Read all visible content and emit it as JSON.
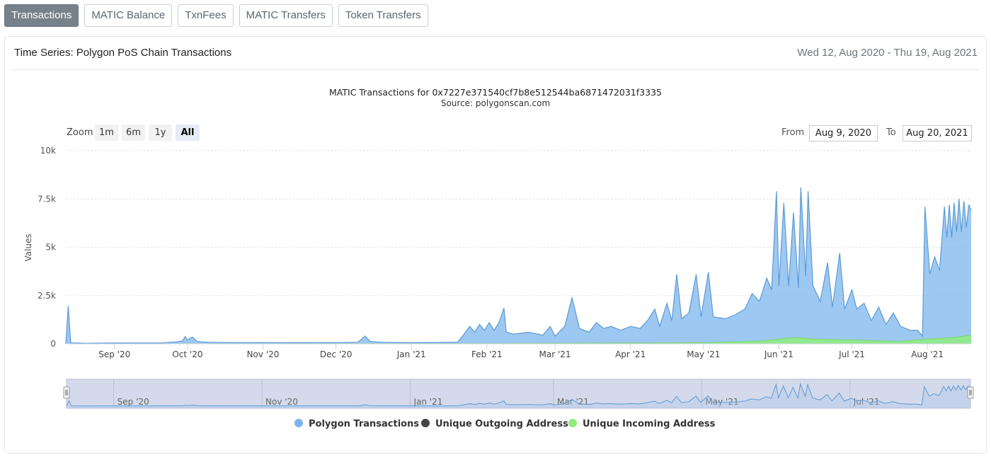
{
  "tabs": [
    {
      "label": "Transactions",
      "active": true
    },
    {
      "label": "MATIC Balance",
      "active": false
    },
    {
      "label": "TxnFees",
      "active": false
    },
    {
      "label": "MATIC Transfers",
      "active": false
    },
    {
      "label": "Token Transfers",
      "active": false
    }
  ],
  "card": {
    "title": "Time Series: Polygon PoS Chain Transactions",
    "date_range": "Wed 12, Aug 2020 - Thu 19, Aug 2021"
  },
  "zoom": {
    "label": "Zoom",
    "buttons": [
      {
        "label": "1m",
        "selected": false
      },
      {
        "label": "6m",
        "selected": false
      },
      {
        "label": "1y",
        "selected": false
      },
      {
        "label": "All",
        "selected": true
      }
    ]
  },
  "range": {
    "from_label": "From",
    "from": "Aug 9, 2020",
    "to_label": "To",
    "to": "Aug 20, 2021"
  },
  "colors": {
    "transactions": "#7cb5ec",
    "outgoing": "#434348",
    "incoming": "#90ed7d"
  },
  "chart_data": {
    "type": "area",
    "title": "MATIC Transactions for 0x7227e371540cf7b8e512544ba6871472031f3335",
    "subtitle": "Source: polygonscan.com",
    "ylabel": "Values",
    "xlabel": "",
    "ylim": [
      0,
      10000
    ],
    "y_ticks": [
      0,
      2500,
      5000,
      7500,
      10000
    ],
    "y_tick_labels": [
      "0",
      "2.5k",
      "5k",
      "7.5k",
      "10k"
    ],
    "xlim": [
      "2020-08-12",
      "2021-08-19"
    ],
    "x_ticks": [
      {
        "date": "2020-09-01",
        "label": "Sep '20"
      },
      {
        "date": "2020-10-01",
        "label": "Oct '20"
      },
      {
        "date": "2020-11-01",
        "label": "Nov '20"
      },
      {
        "date": "2020-12-01",
        "label": "Dec '20"
      },
      {
        "date": "2021-01-01",
        "label": "Jan '21"
      },
      {
        "date": "2021-02-01",
        "label": "Feb '21"
      },
      {
        "date": "2021-03-01",
        "label": "Mar '21"
      },
      {
        "date": "2021-04-01",
        "label": "Apr '21"
      },
      {
        "date": "2021-05-01",
        "label": "May '21"
      },
      {
        "date": "2021-06-01",
        "label": "Jun '21"
      },
      {
        "date": "2021-07-01",
        "label": "Jul '21"
      },
      {
        "date": "2021-08-01",
        "label": "Aug '21"
      }
    ],
    "navigator_ticks": [
      {
        "date": "2020-09-01",
        "label": "Sep '20"
      },
      {
        "date": "2020-11-01",
        "label": "Nov '20"
      },
      {
        "date": "2021-01-01",
        "label": "Jan '21"
      },
      {
        "date": "2021-03-01",
        "label": "Mar '21"
      },
      {
        "date": "2021-05-01",
        "label": "May '21"
      },
      {
        "date": "2021-07-01",
        "label": "Jul '21"
      }
    ],
    "legend_position": "bottom",
    "grid": true,
    "series": [
      {
        "name": "Polygon Transactions",
        "color": "#7cb5ec",
        "points": [
          [
            "2020-08-12",
            0
          ],
          [
            "2020-08-13",
            1950
          ],
          [
            "2020-08-14",
            50
          ],
          [
            "2020-08-20",
            30
          ],
          [
            "2020-09-01",
            40
          ],
          [
            "2020-09-20",
            40
          ],
          [
            "2020-09-26",
            100
          ],
          [
            "2020-09-29",
            150
          ],
          [
            "2020-09-30",
            380
          ],
          [
            "2020-10-01",
            200
          ],
          [
            "2020-10-03",
            350
          ],
          [
            "2020-10-05",
            120
          ],
          [
            "2020-10-10",
            80
          ],
          [
            "2020-10-20",
            60
          ],
          [
            "2020-11-01",
            60
          ],
          [
            "2020-11-15",
            60
          ],
          [
            "2020-12-01",
            60
          ],
          [
            "2020-12-10",
            80
          ],
          [
            "2020-12-13",
            400
          ],
          [
            "2020-12-15",
            120
          ],
          [
            "2020-12-20",
            80
          ],
          [
            "2021-01-01",
            60
          ],
          [
            "2021-01-20",
            80
          ],
          [
            "2021-01-22",
            400
          ],
          [
            "2021-01-25",
            900
          ],
          [
            "2021-01-27",
            600
          ],
          [
            "2021-01-29",
            1000
          ],
          [
            "2021-01-31",
            700
          ],
          [
            "2021-02-02",
            1100
          ],
          [
            "2021-02-04",
            700
          ],
          [
            "2021-02-06",
            1100
          ],
          [
            "2021-02-08",
            1850
          ],
          [
            "2021-02-09",
            600
          ],
          [
            "2021-02-12",
            500
          ],
          [
            "2021-02-18",
            600
          ],
          [
            "2021-02-24",
            450
          ],
          [
            "2021-02-27",
            900
          ],
          [
            "2021-03-01",
            400
          ],
          [
            "2021-03-05",
            900
          ],
          [
            "2021-03-08",
            2400
          ],
          [
            "2021-03-11",
            800
          ],
          [
            "2021-03-15",
            600
          ],
          [
            "2021-03-18",
            1100
          ],
          [
            "2021-03-21",
            800
          ],
          [
            "2021-03-24",
            900
          ],
          [
            "2021-03-28",
            700
          ],
          [
            "2021-04-01",
            900
          ],
          [
            "2021-04-05",
            800
          ],
          [
            "2021-04-08",
            1200
          ],
          [
            "2021-04-11",
            1800
          ],
          [
            "2021-04-13",
            900
          ],
          [
            "2021-04-16",
            2100
          ],
          [
            "2021-04-18",
            1200
          ],
          [
            "2021-04-20",
            3600
          ],
          [
            "2021-04-22",
            1300
          ],
          [
            "2021-04-25",
            1600
          ],
          [
            "2021-04-28",
            3600
          ],
          [
            "2021-04-30",
            1400
          ],
          [
            "2021-05-03",
            3700
          ],
          [
            "2021-05-05",
            1400
          ],
          [
            "2021-05-10",
            1300
          ],
          [
            "2021-05-14",
            1500
          ],
          [
            "2021-05-18",
            1800
          ],
          [
            "2021-05-21",
            2600
          ],
          [
            "2021-05-24",
            2200
          ],
          [
            "2021-05-27",
            3400
          ],
          [
            "2021-05-29",
            2800
          ],
          [
            "2021-05-31",
            7900
          ],
          [
            "2021-06-01",
            3000
          ],
          [
            "2021-06-03",
            7300
          ],
          [
            "2021-06-05",
            3000
          ],
          [
            "2021-06-07",
            6800
          ],
          [
            "2021-06-09",
            2900
          ],
          [
            "2021-06-10",
            8100
          ],
          [
            "2021-06-12",
            3500
          ],
          [
            "2021-06-13",
            7900
          ],
          [
            "2021-06-15",
            3000
          ],
          [
            "2021-06-18",
            2200
          ],
          [
            "2021-06-21",
            4200
          ],
          [
            "2021-06-23",
            1900
          ],
          [
            "2021-06-26",
            4700
          ],
          [
            "2021-06-28",
            1800
          ],
          [
            "2021-07-01",
            2800
          ],
          [
            "2021-07-03",
            1800
          ],
          [
            "2021-07-06",
            2100
          ],
          [
            "2021-07-09",
            1200
          ],
          [
            "2021-07-12",
            1900
          ],
          [
            "2021-07-15",
            1000
          ],
          [
            "2021-07-18",
            1600
          ],
          [
            "2021-07-21",
            900
          ],
          [
            "2021-07-25",
            700
          ],
          [
            "2021-07-28",
            700
          ],
          [
            "2021-07-30",
            400
          ],
          [
            "2021-07-31",
            7100
          ],
          [
            "2021-08-02",
            3600
          ],
          [
            "2021-08-04",
            4500
          ],
          [
            "2021-08-06",
            3800
          ],
          [
            "2021-08-08",
            7100
          ],
          [
            "2021-08-09",
            5500
          ],
          [
            "2021-08-10",
            7200
          ],
          [
            "2021-08-11",
            5500
          ],
          [
            "2021-08-12",
            7300
          ],
          [
            "2021-08-13",
            5800
          ],
          [
            "2021-08-14",
            7500
          ],
          [
            "2021-08-15",
            5800
          ],
          [
            "2021-08-16",
            7400
          ],
          [
            "2021-08-17",
            6000
          ],
          [
            "2021-08-18",
            7200
          ],
          [
            "2021-08-19",
            6900
          ]
        ]
      },
      {
        "name": "Unique Outgoing Address",
        "color": "#434348",
        "points": [
          [
            "2020-08-12",
            0
          ],
          [
            "2021-08-19",
            0
          ]
        ]
      },
      {
        "name": "Unique Incoming Address",
        "color": "#90ed7d",
        "points": [
          [
            "2020-08-12",
            0
          ],
          [
            "2021-01-20",
            10
          ],
          [
            "2021-03-01",
            30
          ],
          [
            "2021-04-01",
            40
          ],
          [
            "2021-05-01",
            60
          ],
          [
            "2021-05-25",
            150
          ],
          [
            "2021-06-08",
            330
          ],
          [
            "2021-06-15",
            250
          ],
          [
            "2021-07-01",
            200
          ],
          [
            "2021-07-20",
            120
          ],
          [
            "2021-08-01",
            250
          ],
          [
            "2021-08-12",
            330
          ],
          [
            "2021-08-19",
            450
          ]
        ]
      }
    ]
  }
}
